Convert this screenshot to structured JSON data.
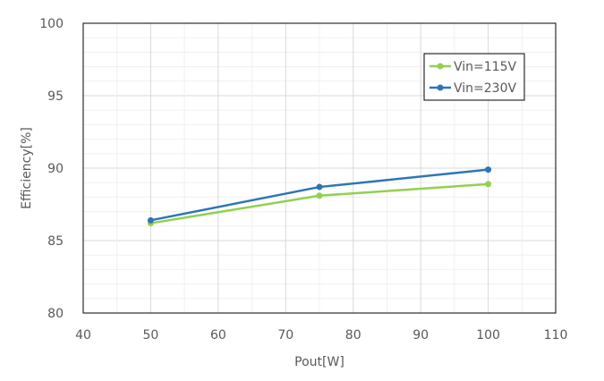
{
  "chart_data": {
    "type": "line",
    "title": "",
    "xlabel": "Pout[W]",
    "ylabel": "Efficiency[%]",
    "xlim": [
      40,
      110
    ],
    "ylim": [
      80,
      100
    ],
    "xticks": [
      "40",
      "50",
      "60",
      "70",
      "80",
      "90",
      "100",
      "110"
    ],
    "yticks": [
      "80",
      "85",
      "90",
      "95",
      "100"
    ],
    "grid": true,
    "legend_position": "top-right",
    "series": [
      {
        "name": "Vin=115V",
        "color": "#92d050",
        "x": [
          50,
          75,
          100
        ],
        "y": [
          86.2,
          88.1,
          88.9
        ]
      },
      {
        "name": "Vin=230V",
        "color": "#2e75b6",
        "x": [
          50,
          75,
          100
        ],
        "y": [
          86.4,
          88.7,
          89.9
        ]
      }
    ]
  }
}
